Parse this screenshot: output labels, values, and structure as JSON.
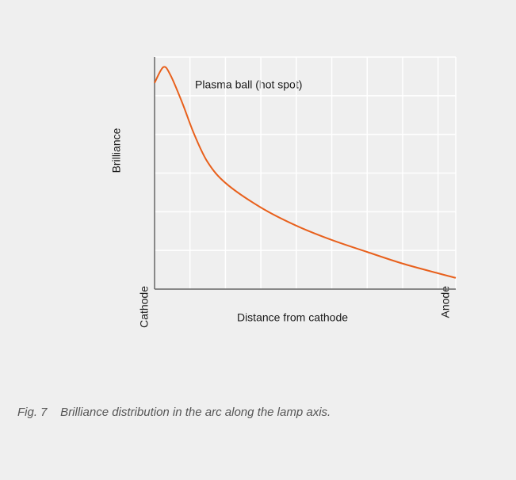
{
  "chart_data": {
    "type": "line",
    "ylabel": "Brilliance",
    "xlabel": "Distance from cathode",
    "annotation": "Plasma ball (hot spot)",
    "caption": "Fig. 7    Brilliance distribution in the arc along the lamp axis.",
    "series": [
      {
        "color": "#e8601c",
        "x": [
          0,
          0.25,
          0.45,
          0.78,
          1.12,
          1.5,
          2.02,
          3,
          4,
          5,
          6,
          7,
          8,
          8.5
        ],
        "values": [
          5.33,
          5.74,
          5.53,
          4.82,
          4.0,
          3.28,
          2.73,
          2.11,
          1.64,
          1.27,
          0.96,
          0.66,
          0.41,
          0.29
        ]
      }
    ],
    "xlim": [
      0,
      8.5
    ],
    "ylim": [
      0,
      6
    ],
    "xticks": [
      {
        "value": 0,
        "label": "Cathode"
      },
      {
        "value": 8.5,
        "label": "Anode"
      }
    ],
    "xgrid": [
      1,
      2,
      3,
      4,
      5,
      6,
      7,
      8
    ],
    "ygrid": [
      1,
      2,
      3,
      4,
      5,
      6
    ],
    "grid": true
  }
}
